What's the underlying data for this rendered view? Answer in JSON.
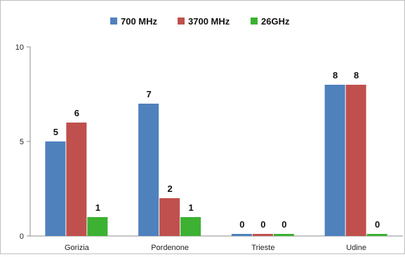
{
  "chart_data": {
    "type": "bar",
    "categories": [
      "Gorizia",
      "Pordenone",
      "Trieste",
      "Udine"
    ],
    "series": [
      {
        "name": "700 MHz",
        "values": [
          5,
          7,
          0,
          8
        ],
        "color": "#4f81bd"
      },
      {
        "name": "3700 MHz",
        "values": [
          6,
          2,
          0,
          8
        ],
        "color": "#c0504d"
      },
      {
        "name": "26GHz",
        "values": [
          1,
          1,
          0,
          0
        ],
        "color": "#3cb132"
      }
    ],
    "yticks": [
      0,
      5,
      10
    ],
    "ylim": [
      0,
      10
    ],
    "grid": false,
    "legend": "top-center",
    "data_labels": true
  }
}
